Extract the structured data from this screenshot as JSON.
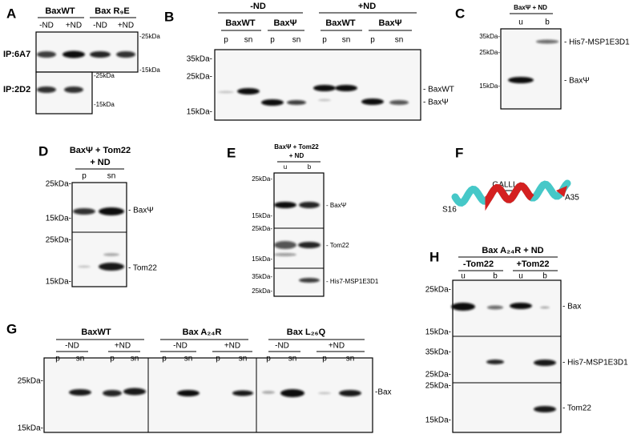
{
  "panels": {
    "A": {
      "letter": "A",
      "headers": [
        "BaxWT",
        "Bax R₉E"
      ],
      "conditions": [
        "-ND",
        "+ND",
        "-ND",
        "+ND"
      ],
      "blots": [
        "IP:6A7",
        "IP:2D2"
      ],
      "markers": [
        "-25kDa",
        "-15kDa",
        "-25kDa",
        "-15kDa"
      ]
    },
    "B": {
      "letter": "B",
      "conditions": [
        "-ND",
        "+ND"
      ],
      "headers": [
        "BaxWT",
        "BaxΨ",
        "BaxWT",
        "BaxΨ"
      ],
      "lanes": [
        "p",
        "sn",
        "p",
        "sn",
        "p",
        "sn",
        "p",
        "sn"
      ],
      "markers": [
        "35kDa-",
        "25kDa-",
        "15kDa-"
      ],
      "bands": [
        "- BaxWT",
        "- BaxΨ"
      ]
    },
    "C": {
      "letter": "C",
      "title": "BaxΨ + ND",
      "lanes": [
        "u",
        "b"
      ],
      "markers": [
        "35kDa-",
        "25kDa-",
        "15kDa-"
      ],
      "bands": [
        "- His7-MSP1E3D1",
        "- BaxΨ"
      ]
    },
    "D": {
      "letter": "D",
      "title": [
        "BaxΨ + Tom22",
        "+ ND"
      ],
      "lanes": [
        "p",
        "sn"
      ],
      "markers": [
        "25kDa-",
        "15kDa-",
        "25kDa-",
        "15kDa-"
      ],
      "bands": [
        "- BaxΨ",
        "- Tom22"
      ]
    },
    "E": {
      "letter": "E",
      "title": [
        "BaxΨ + Tom22",
        "+ ND"
      ],
      "lanes": [
        "u",
        "b"
      ],
      "markers": [
        "25kDa-",
        "15kDa-",
        "25kDa-",
        "15kDa-",
        "35kDa-",
        "25kDa-"
      ],
      "bands": [
        "- BaxΨ",
        "- Tom22",
        "- His7-MSP1E3D1"
      ]
    },
    "F": {
      "letter": "F",
      "motif": "GALLL",
      "start": "S16",
      "end": "A35"
    },
    "G": {
      "letter": "G",
      "headers": [
        "BaxWT",
        "Bax A₂₄R",
        "Bax L₂₆Q"
      ],
      "conditions": [
        "-ND",
        "+ND",
        "-ND",
        "+ND",
        "-ND",
        "+ND"
      ],
      "lanes": [
        "p",
        "sn",
        "p",
        "sn",
        "p",
        "sn",
        "p",
        "sn",
        "p",
        "sn",
        "p",
        "sn"
      ],
      "markers": [
        "25kDa-",
        "15kDa-"
      ],
      "bands": [
        "-Bax"
      ]
    },
    "H": {
      "letter": "H",
      "title": "Bax A₂₄R + ND",
      "conditions": [
        "-Tom22",
        "+Tom22"
      ],
      "lanes": [
        "u",
        "b",
        "u",
        "b"
      ],
      "markers": [
        "25kDa-",
        "15kDa-",
        "35kDa-",
        "25kDa-",
        "25kDa-",
        "15kDa-"
      ],
      "bands": [
        "- Bax",
        "- His7-MSP1E3D1",
        "- Tom22"
      ]
    }
  }
}
